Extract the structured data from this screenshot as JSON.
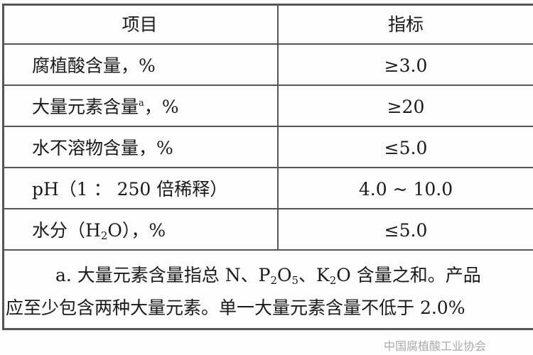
{
  "table": {
    "headers": [
      "项目",
      "指标"
    ],
    "rows": [
      {
        "item": "腐植酸含量，%",
        "value": "≥3.0"
      },
      {
        "item_pre": "大量元素含量",
        "item_sup": "a",
        "item_post": "，%",
        "value": "≥20"
      },
      {
        "item": "水不溶物含量，%",
        "value": "≤5.0"
      },
      {
        "item": "pH（1 ： 250 倍稀释）",
        "value": "4.0 ~ 10.0"
      },
      {
        "item_pre": "水分（H",
        "item_sub": "2",
        "item_post": "O），%",
        "value": "≤5.0"
      }
    ],
    "note": {
      "line1_a": "a. 大量元素含量指总 N、P",
      "line1_sub1": "2",
      "line1_b": "O",
      "line1_sub2": "5",
      "line1_c": "、K",
      "line1_sub3": "2",
      "line1_d": "O 含量之和。产品",
      "line2": "应至少包含两种大量元素。单一大量元素含量不低于 2.0%"
    }
  },
  "watermark": "中国腐植酸工业协会"
}
